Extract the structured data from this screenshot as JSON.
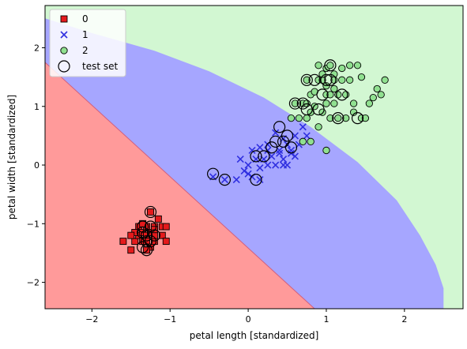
{
  "chart_data": {
    "type": "scatter",
    "xlabel": "petal length [standardized]",
    "ylabel": "petal width [standardized]",
    "xlim": [
      -2.6,
      2.75
    ],
    "ylim": [
      -2.45,
      2.72
    ],
    "xticks": [
      -2,
      -1,
      0,
      1,
      2
    ],
    "yticks": [
      -2,
      -1,
      0,
      1,
      2
    ],
    "xtick_labels": [
      "−2",
      "−1",
      "0",
      "1",
      "2"
    ],
    "ytick_labels": [
      "−2",
      "−1",
      "0",
      "1",
      "2"
    ],
    "grid": false,
    "legend_position": "top-left",
    "regions": [
      {
        "class": "0",
        "color": "#ff9a9a"
      },
      {
        "class": "1",
        "color": "#a6a6ff"
      },
      {
        "class": "2",
        "color": "#d2f7d2"
      }
    ],
    "series": [
      {
        "name": "0",
        "marker": "square",
        "color": "#e41a1c",
        "points": [
          [
            -1.6,
            -1.3
          ],
          [
            -1.5,
            -1.45
          ],
          [
            -1.45,
            -1.3
          ],
          [
            -1.4,
            -1.2
          ],
          [
            -1.4,
            -1.05
          ],
          [
            -1.35,
            -1.3
          ],
          [
            -1.35,
            -1.15
          ],
          [
            -1.3,
            -1.2
          ],
          [
            -1.3,
            -1.3
          ],
          [
            -1.3,
            -1.05
          ],
          [
            -1.25,
            -1.15
          ],
          [
            -1.25,
            -1.4
          ],
          [
            -1.2,
            -1.3
          ],
          [
            -1.2,
            -1.05
          ],
          [
            -1.15,
            -0.92
          ],
          [
            -1.2,
            -1.2
          ],
          [
            -1.25,
            -0.8
          ],
          [
            -1.1,
            -1.05
          ],
          [
            -1.1,
            -1.2
          ],
          [
            -1.05,
            -1.05
          ],
          [
            -1.05,
            -1.3
          ],
          [
            -1.3,
            -1.45
          ],
          [
            -1.35,
            -1.0
          ],
          [
            -1.45,
            -1.15
          ],
          [
            -1.5,
            -1.2
          ],
          [
            -1.2,
            -1.1
          ]
        ]
      },
      {
        "name": "1",
        "marker": "x",
        "color": "#3030e0",
        "points": [
          [
            -0.45,
            -0.2
          ],
          [
            -0.3,
            -0.25
          ],
          [
            -0.15,
            -0.25
          ],
          [
            -0.1,
            0.1
          ],
          [
            0.0,
            -0.15
          ],
          [
            0.0,
            0.0
          ],
          [
            0.05,
            0.25
          ],
          [
            0.05,
            -0.2
          ],
          [
            0.1,
            0.1
          ],
          [
            0.15,
            -0.05
          ],
          [
            0.15,
            -0.25
          ],
          [
            0.2,
            0.1
          ],
          [
            0.25,
            0.35
          ],
          [
            0.25,
            0.0
          ],
          [
            0.3,
            0.15
          ],
          [
            0.35,
            0.0
          ],
          [
            0.4,
            0.25
          ],
          [
            0.45,
            0.1
          ],
          [
            0.45,
            0.0
          ],
          [
            0.5,
            0.35
          ],
          [
            0.55,
            0.25
          ],
          [
            0.6,
            0.5
          ],
          [
            0.65,
            0.35
          ],
          [
            0.7,
            0.65
          ],
          [
            0.75,
            0.5
          ],
          [
            0.55,
            0.2
          ],
          [
            0.5,
            0.0
          ],
          [
            0.35,
            0.55
          ],
          [
            0.25,
            0.25
          ],
          [
            0.45,
            0.45
          ],
          [
            0.6,
            0.15
          ],
          [
            -0.05,
            -0.1
          ],
          [
            0.4,
            0.2
          ],
          [
            0.15,
            0.3
          ]
        ]
      },
      {
        "name": "2",
        "marker": "circle",
        "color": "#90e090",
        "points": [
          [
            0.55,
            0.8
          ],
          [
            0.6,
            1.05
          ],
          [
            0.65,
            0.8
          ],
          [
            0.7,
            1.05
          ],
          [
            0.7,
            0.4
          ],
          [
            0.75,
            1.05
          ],
          [
            0.75,
            0.8
          ],
          [
            0.75,
            1.45
          ],
          [
            0.8,
            1.2
          ],
          [
            0.8,
            0.9
          ],
          [
            0.8,
            0.4
          ],
          [
            0.85,
            1.0
          ],
          [
            0.9,
            1.45
          ],
          [
            0.9,
            0.65
          ],
          [
            0.95,
            0.9
          ],
          [
            0.95,
            1.45
          ],
          [
            1.0,
            1.05
          ],
          [
            1.0,
            1.2
          ],
          [
            1.0,
            1.65
          ],
          [
            1.05,
            1.2
          ],
          [
            1.05,
            0.8
          ],
          [
            1.0,
            0.25
          ],
          [
            1.1,
            1.05
          ],
          [
            1.1,
            1.3
          ],
          [
            1.1,
            1.55
          ],
          [
            1.1,
            1.45
          ],
          [
            1.15,
            1.2
          ],
          [
            1.15,
            0.8
          ],
          [
            1.2,
            1.65
          ],
          [
            1.2,
            1.45
          ],
          [
            1.25,
            0.8
          ],
          [
            1.25,
            1.2
          ],
          [
            1.3,
            1.7
          ],
          [
            1.3,
            1.45
          ],
          [
            1.35,
            0.9
          ],
          [
            1.35,
            1.05
          ],
          [
            1.4,
            1.7
          ],
          [
            1.45,
            0.8
          ],
          [
            1.45,
            1.5
          ],
          [
            1.5,
            0.8
          ],
          [
            1.55,
            1.05
          ],
          [
            1.6,
            1.15
          ],
          [
            1.65,
            1.3
          ],
          [
            1.7,
            1.2
          ],
          [
            1.75,
            1.45
          ],
          [
            0.95,
            1.55
          ],
          [
            0.9,
            1.7
          ],
          [
            1.05,
            1.7
          ],
          [
            1.0,
            1.35
          ],
          [
            0.85,
            1.25
          ]
        ]
      }
    ],
    "test_set": {
      "name": "test set",
      "marker": "open-circle",
      "points": [
        [
          -1.25,
          -0.8
        ],
        [
          -1.35,
          -1.15
        ],
        [
          -1.3,
          -1.3
        ],
        [
          -1.3,
          -1.45
        ],
        [
          -1.35,
          -1.05
        ],
        [
          -1.3,
          -1.2
        ],
        [
          -1.25,
          -1.3
        ],
        [
          -1.2,
          -1.2
        ],
        [
          -1.35,
          -1.4
        ],
        [
          -1.25,
          -1.05
        ],
        [
          -0.45,
          -0.15
        ],
        [
          -0.3,
          -0.25
        ],
        [
          0.1,
          -0.25
        ],
        [
          0.1,
          0.15
        ],
        [
          0.2,
          0.15
        ],
        [
          0.3,
          0.3
        ],
        [
          0.35,
          0.4
        ],
        [
          0.4,
          0.65
        ],
        [
          0.45,
          0.4
        ],
        [
          0.5,
          0.5
        ],
        [
          0.55,
          0.3
        ],
        [
          0.6,
          1.05
        ],
        [
          0.7,
          1.05
        ],
        [
          0.75,
          0.95
        ],
        [
          0.75,
          1.45
        ],
        [
          0.85,
          1.45
        ],
        [
          0.9,
          0.95
        ],
        [
          0.95,
          1.2
        ],
        [
          1.0,
          1.45
        ],
        [
          1.05,
          1.7
        ],
        [
          1.05,
          1.45
        ],
        [
          1.15,
          0.8
        ],
        [
          1.2,
          1.2
        ],
        [
          1.4,
          0.8
        ]
      ]
    }
  }
}
